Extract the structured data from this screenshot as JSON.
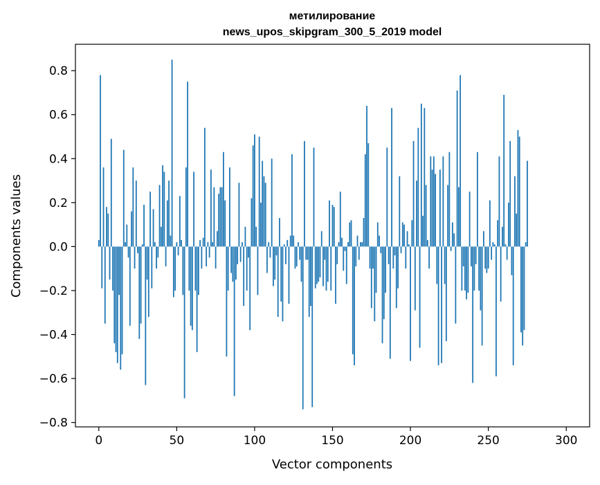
{
  "chart_data": {
    "type": "bar",
    "title_line1": "метилирование",
    "title_line2": "news_upos_skipgram_300_5_2019 model",
    "xlabel": "Vector components",
    "ylabel": "Components values",
    "xlim": [
      -15,
      315
    ],
    "ylim": [
      -0.82,
      0.92
    ],
    "xticks": [
      0,
      50,
      100,
      150,
      200,
      250,
      300
    ],
    "xtick_labels": [
      "0",
      "50",
      "100",
      "150",
      "200",
      "250",
      "300"
    ],
    "yticks": [
      -0.8,
      -0.6,
      -0.4,
      -0.2,
      0.0,
      0.2,
      0.4,
      0.6,
      0.8
    ],
    "ytick_labels": [
      "−0.8",
      "−0.6",
      "−0.4",
      "−0.2",
      "0.0",
      "0.2",
      "0.4",
      "0.6",
      "0.8"
    ],
    "bar_color": "#1f77b4",
    "grid": false,
    "x_start": 0,
    "values": [
      0.03,
      0.78,
      -0.19,
      0.36,
      -0.35,
      0.18,
      0.15,
      -0.15,
      0.49,
      -0.2,
      -0.44,
      -0.48,
      -0.53,
      -0.22,
      -0.56,
      -0.49,
      0.44,
      0.02,
      0.1,
      -0.05,
      -0.36,
      0.16,
      0.36,
      -0.1,
      0.3,
      -0.03,
      -0.42,
      -0.35,
      0.01,
      0.19,
      -0.63,
      -0.15,
      -0.32,
      0.25,
      -0.19,
      0.17,
      0.02,
      -0.1,
      -0.05,
      0.28,
      0.09,
      0.37,
      0.34,
      -0.09,
      0.21,
      0.3,
      0.05,
      0.85,
      -0.23,
      -0.2,
      0.02,
      -0.04,
      0.23,
      0.03,
      -0.22,
      -0.69,
      0.36,
      0.75,
      -0.2,
      -0.36,
      -0.38,
      0.34,
      -0.2,
      -0.48,
      -0.22,
      0.03,
      -0.1,
      0.04,
      0.54,
      -0.09,
      0.02,
      -0.05,
      0.35,
      0.02,
      0.27,
      -0.1,
      0.07,
      0.24,
      0.27,
      0.27,
      0.43,
      0.21,
      -0.5,
      -0.2,
      0.36,
      -0.12,
      -0.16,
      -0.68,
      -0.15,
      -0.08,
      0.29,
      -0.07,
      0.02,
      -0.27,
      0.09,
      -0.2,
      -0.05,
      -0.38,
      0.22,
      0.46,
      0.51,
      0.09,
      -0.22,
      0.5,
      0.2,
      0.39,
      0.32,
      0.29,
      -0.12,
      0.02,
      -0.05,
      0.4,
      -0.18,
      -0.15,
      -0.04,
      -0.32,
      0.13,
      -0.25,
      -0.34,
      0.01,
      -0.08,
      0.03,
      -0.26,
      0.05,
      0.42,
      0.05,
      -0.1,
      -0.09,
      0.02,
      -0.06,
      -0.16,
      -0.74,
      0.48,
      -0.06,
      -0.06,
      -0.32,
      -0.27,
      -0.73,
      0.45,
      -0.19,
      -0.17,
      -0.16,
      -0.14,
      0.07,
      -0.18,
      -0.06,
      -0.2,
      -0.16,
      0.21,
      -0.2,
      0.19,
      0.18,
      -0.26,
      -0.08,
      0.02,
      0.25,
      0.04,
      -0.11,
      -0.02,
      -0.17,
      0.02,
      0.11,
      0.12,
      -0.49,
      -0.54,
      -0.09,
      0.05,
      -0.06,
      0.02,
      0.02,
      0.13,
      0.42,
      0.64,
      0.47,
      -0.1,
      -0.28,
      -0.1,
      -0.34,
      -0.21,
      0.11,
      0.05,
      -0.03,
      -0.44,
      -0.33,
      -0.21,
      0.45,
      -0.08,
      -0.51,
      0.63,
      -0.1,
      -0.04,
      -0.28,
      -0.19,
      0.32,
      -0.03,
      0.11,
      0.1,
      -0.1,
      0.07,
      0.01,
      -0.52,
      0.12,
      0.48,
      -0.29,
      0.3,
      0.54,
      -0.46,
      0.65,
      0.14,
      0.63,
      0.28,
      0.03,
      -0.1,
      0.41,
      0.35,
      0.41,
      0.33,
      -0.17,
      -0.54,
      0.35,
      -0.53,
      0.41,
      -0.17,
      -0.43,
      0.28,
      0.43,
      -0.02,
      0.11,
      0.06,
      -0.35,
      0.71,
      0.27,
      0.78,
      -0.2,
      -0.09,
      -0.2,
      -0.24,
      -0.21,
      0.25,
      -0.09,
      -0.62,
      -0.2,
      -0.08,
      0.43,
      -0.2,
      -0.29,
      -0.45,
      0.07,
      -0.1,
      -0.12,
      -0.1,
      0.21,
      -0.06,
      0.02,
      0.01,
      -0.59,
      0.12,
      0.41,
      -0.25,
      0.09,
      0.69,
      0.01,
      -0.06,
      0.2,
      0.48,
      -0.13,
      -0.54,
      0.32,
      0.15,
      0.53,
      0.5,
      -0.39,
      -0.45,
      -0.38,
      0.02,
      0.39
    ]
  }
}
